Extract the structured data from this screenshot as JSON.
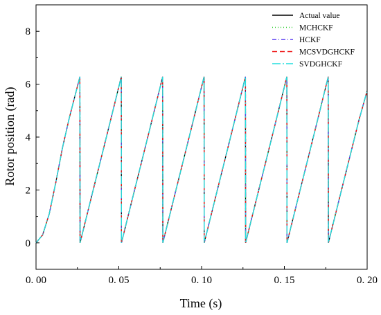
{
  "chart_data": {
    "type": "line",
    "xlabel": "Time (s)",
    "ylabel": "Rotor position (rad)",
    "xlim": [
      0,
      0.2
    ],
    "ylim": [
      -1,
      9
    ],
    "xticks": [
      "0. 00",
      "0. 05",
      "0. 10",
      "0. 15",
      "0. 20"
    ],
    "xtick_values": [
      0,
      0.05,
      0.1,
      0.15,
      0.2
    ],
    "yticks": [
      "0",
      "2",
      "4",
      "6",
      "8"
    ],
    "ytick_values": [
      0,
      2,
      4,
      6,
      8
    ],
    "grid": false,
    "legend_position": "top-right",
    "x": [
      0,
      0.004,
      0.008,
      0.012,
      0.016,
      0.02,
      0.0265,
      0.0266,
      0.03,
      0.035,
      0.04,
      0.045,
      0.0515,
      0.0516,
      0.055,
      0.06,
      0.065,
      0.07,
      0.0765,
      0.0766,
      0.08,
      0.085,
      0.09,
      0.095,
      0.1015,
      0.1016,
      0.105,
      0.11,
      0.115,
      0.12,
      0.1265,
      0.1266,
      0.13,
      0.135,
      0.14,
      0.145,
      0.1515,
      0.1516,
      0.155,
      0.16,
      0.165,
      0.17,
      0.1765,
      0.1766,
      0.18,
      0.185,
      0.19,
      0.195,
      0.2
    ],
    "series": [
      {
        "name": "Actual value",
        "color": "#000000",
        "dash": "",
        "values": [
          0,
          0.3,
          1.1,
          2.3,
          3.6,
          4.7,
          6.28,
          0,
          0.86,
          2.12,
          3.37,
          4.63,
          6.28,
          0,
          0.86,
          2.12,
          3.37,
          4.63,
          6.28,
          0,
          0.86,
          2.12,
          3.37,
          4.63,
          6.28,
          0,
          0.86,
          2.12,
          3.37,
          4.63,
          6.28,
          0,
          0.86,
          2.12,
          3.37,
          4.63,
          6.28,
          0,
          0.86,
          2.12,
          3.37,
          4.63,
          6.28,
          0,
          0.86,
          2.12,
          3.37,
          4.63,
          5.75
        ]
      },
      {
        "name": "MCHCKF",
        "color": "#22cc22",
        "dash": "1,3",
        "values": [
          0,
          0.3,
          1.1,
          2.3,
          3.6,
          4.7,
          6.28,
          0,
          0.86,
          2.12,
          3.37,
          4.63,
          6.28,
          0,
          0.86,
          2.12,
          3.37,
          4.63,
          6.28,
          0,
          0.86,
          2.12,
          3.37,
          4.63,
          6.28,
          0,
          0.86,
          2.12,
          3.37,
          4.63,
          6.28,
          0,
          0.86,
          2.12,
          3.37,
          4.63,
          6.28,
          0,
          0.86,
          2.12,
          3.37,
          4.63,
          6.28,
          0,
          0.86,
          2.12,
          3.37,
          4.63,
          5.75
        ]
      },
      {
        "name": "HCKF",
        "color": "#5a3df0",
        "dash": "6,3,1,3",
        "values": [
          0,
          0.3,
          1.1,
          2.3,
          3.6,
          4.7,
          6.28,
          0,
          0.86,
          2.12,
          3.37,
          4.63,
          6.28,
          0,
          0.86,
          2.12,
          3.37,
          4.63,
          6.28,
          0,
          0.86,
          2.12,
          3.37,
          4.63,
          6.28,
          0,
          0.86,
          2.12,
          3.37,
          4.63,
          6.28,
          0,
          0.86,
          2.12,
          3.37,
          4.63,
          6.28,
          0,
          0.86,
          2.12,
          3.37,
          4.63,
          6.28,
          0,
          0.86,
          2.12,
          3.37,
          4.63,
          5.75
        ]
      },
      {
        "name": "MCSVDGHCKF",
        "color": "#ee1111",
        "dash": "7,4",
        "values": [
          0,
          0.3,
          1.1,
          2.3,
          3.6,
          4.7,
          6.28,
          0,
          0.86,
          2.12,
          3.37,
          4.63,
          6.28,
          0,
          0.86,
          2.12,
          3.37,
          4.63,
          6.28,
          0,
          0.86,
          2.12,
          3.37,
          4.63,
          6.28,
          0,
          0.86,
          2.12,
          3.37,
          4.63,
          6.28,
          0,
          0.86,
          2.12,
          3.37,
          4.63,
          6.28,
          0,
          0.86,
          2.12,
          3.37,
          4.63,
          6.28,
          0,
          0.86,
          2.12,
          3.37,
          4.63,
          5.75
        ]
      },
      {
        "name": "SVDGHCKF",
        "color": "#22dddd",
        "dash": "12,3,2,3",
        "values": [
          0,
          0.3,
          1.1,
          2.3,
          3.6,
          4.7,
          6.28,
          0,
          0.86,
          2.12,
          3.37,
          4.63,
          6.28,
          0,
          0.86,
          2.12,
          3.37,
          4.63,
          6.28,
          0,
          0.86,
          2.12,
          3.37,
          4.63,
          6.28,
          0,
          0.86,
          2.12,
          3.37,
          4.63,
          6.28,
          0,
          0.86,
          2.12,
          3.37,
          4.63,
          6.28,
          0,
          0.86,
          2.12,
          3.37,
          4.63,
          6.28,
          0,
          0.86,
          2.12,
          3.37,
          4.63,
          5.75
        ]
      }
    ]
  }
}
